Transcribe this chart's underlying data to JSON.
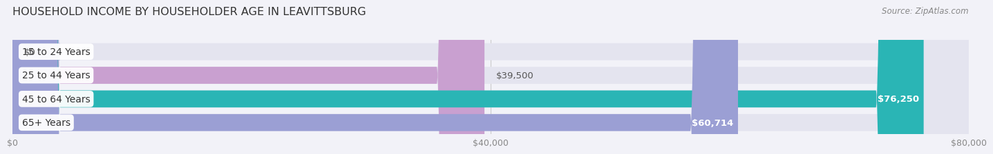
{
  "title": "HOUSEHOLD INCOME BY HOUSEHOLDER AGE IN LEAVITTSBURG",
  "source": "Source: ZipAtlas.com",
  "categories": [
    "15 to 24 Years",
    "25 to 44 Years",
    "45 to 64 Years",
    "65+ Years"
  ],
  "values": [
    0,
    39500,
    76250,
    60714
  ],
  "bar_colors": [
    "#a8b8e8",
    "#c9a0d0",
    "#2ab5b5",
    "#9b9fd4"
  ],
  "value_labels": [
    "$0",
    "$39,500",
    "$76,250",
    "$60,714"
  ],
  "label_inside": [
    false,
    false,
    true,
    true
  ],
  "xlim": [
    0,
    80000
  ],
  "xticks": [
    0,
    40000,
    80000
  ],
  "xticklabels": [
    "$0",
    "$40,000",
    "$80,000"
  ],
  "bar_height": 0.72,
  "background_color": "#f2f2f8",
  "bar_bg_color": "#e4e4ef",
  "title_fontsize": 11.5,
  "source_fontsize": 8.5,
  "label_fontsize": 9.5,
  "tick_fontsize": 9,
  "category_fontsize": 10
}
